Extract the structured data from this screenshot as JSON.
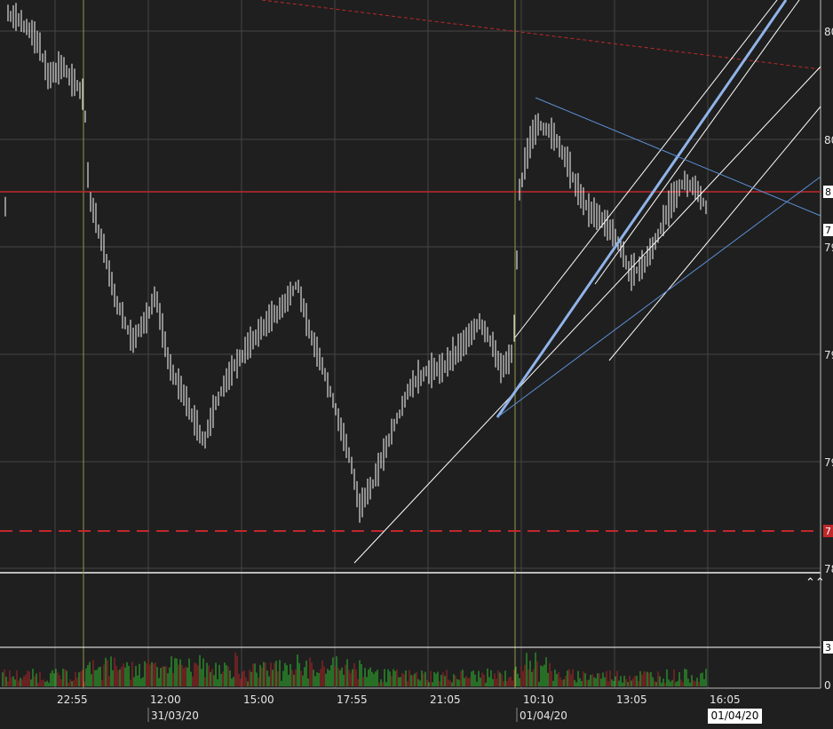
{
  "chart_data": {
    "type": "bar",
    "price_axis_labels": [
      "80",
      "80",
      "79",
      "79",
      "79",
      "78"
    ],
    "right_markers": [
      "8",
      "7",
      "7"
    ],
    "volume_axis_labels": [
      "3",
      "0"
    ],
    "time_labels": [
      "22:55",
      "12:00",
      "15:00",
      "17:55",
      "21:05",
      "10:10",
      "13:05",
      "16:05"
    ],
    "date_labels": [
      "31/03/20",
      "01/04/20"
    ],
    "current_date_badge": "01/04/20",
    "grid": true,
    "colors": {
      "background": "#1f1f1f",
      "price_bars": "#ffffff",
      "resistance_line": "#c0282b",
      "session_line": "#8f9a4a",
      "channel_line": "#8fb4e8",
      "volume_up": "#2fbf2f",
      "volume_down": "#b02525"
    }
  },
  "ui": {
    "collapse_icon": "chevron-up-double-icon"
  }
}
